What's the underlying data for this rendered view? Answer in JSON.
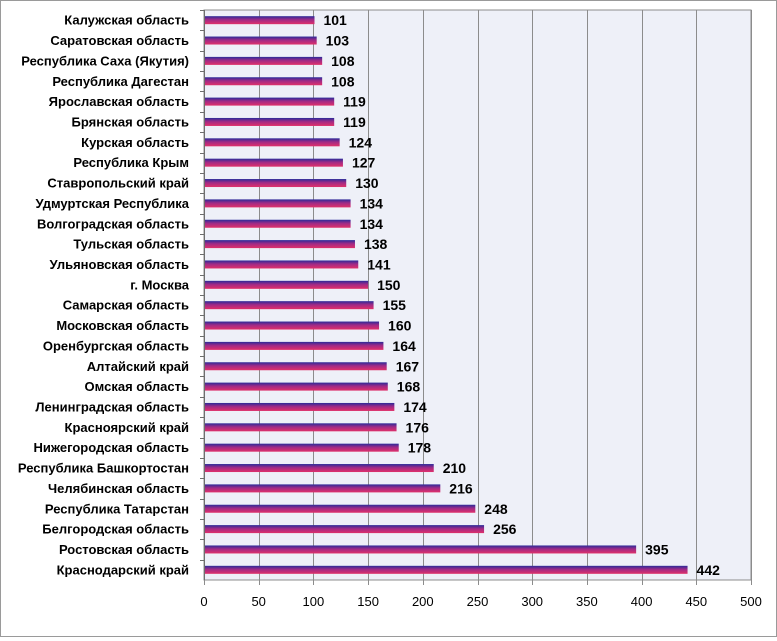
{
  "chart_data": {
    "type": "bar",
    "orientation": "horizontal",
    "title": "",
    "xlabel": "",
    "ylabel": "",
    "xlim": [
      0,
      500
    ],
    "x_ticks": [
      0,
      50,
      100,
      150,
      200,
      250,
      300,
      350,
      400,
      450,
      500
    ],
    "grid": "vertical",
    "legend": "none",
    "colors": {
      "bar_top": "#2b2b9a",
      "bar_bottom": "#e0306a",
      "plot_bg": "#eef0f8",
      "grid": "#8c8c8c"
    },
    "categories": [
      "Калужская область",
      "Саратовская область",
      "Республика Саха (Якутия)",
      "Республика Дагестан",
      "Ярославская область",
      "Брянская область",
      "Курская область",
      "Республика Крым",
      "Ставропольский край",
      "Удмуртская Республика",
      "Волгоградская область",
      "Тульская область",
      "Ульяновская область",
      "г. Москва",
      "Самарская область",
      "Московская область",
      "Оренбургская область",
      "Алтайский край",
      "Омская область",
      "Ленинградская область",
      "Красноярский край",
      "Нижегородская область",
      "Республика Башкортостан",
      "Челябинская область",
      "Республика Татарстан",
      "Белгородская область",
      "Ростовская область",
      "Краснодарский край"
    ],
    "values": [
      101,
      103,
      108,
      108,
      119,
      119,
      124,
      127,
      130,
      134,
      134,
      138,
      141,
      150,
      155,
      160,
      164,
      167,
      168,
      174,
      176,
      178,
      210,
      216,
      248,
      256,
      395,
      442
    ]
  }
}
